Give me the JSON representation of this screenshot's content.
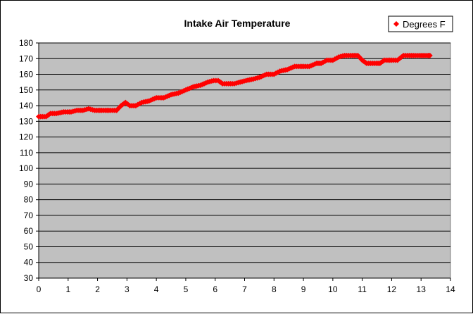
{
  "chart_data": {
    "type": "scatter",
    "title": "Intake Air Temperature",
    "xlabel": "",
    "ylabel": "",
    "xlim": [
      0,
      14
    ],
    "ylim": [
      30,
      180
    ],
    "xticks": [
      "0",
      "1",
      "2",
      "3",
      "4",
      "5",
      "6",
      "7",
      "8",
      "9",
      "10",
      "11",
      "12",
      "13",
      "14"
    ],
    "yticks": [
      "30",
      "40",
      "50",
      "60",
      "70",
      "80",
      "90",
      "100",
      "110",
      "120",
      "130",
      "140",
      "150",
      "160",
      "170",
      "180"
    ],
    "grid": "horizontal",
    "plot_background": "#C0C0C0",
    "legend_position": "top-right",
    "series": [
      {
        "name": "Degrees F",
        "color": "#FF0000",
        "marker": "diamond",
        "points": [
          [
            0.0,
            133
          ],
          [
            0.25,
            133
          ],
          [
            0.4,
            135
          ],
          [
            0.6,
            135
          ],
          [
            0.85,
            136
          ],
          [
            1.1,
            136
          ],
          [
            1.3,
            137
          ],
          [
            1.5,
            137
          ],
          [
            1.7,
            138
          ],
          [
            1.9,
            137
          ],
          [
            2.2,
            137
          ],
          [
            2.45,
            137
          ],
          [
            2.65,
            137
          ],
          [
            2.8,
            140
          ],
          [
            2.95,
            142
          ],
          [
            3.1,
            140
          ],
          [
            3.3,
            140
          ],
          [
            3.5,
            142
          ],
          [
            3.75,
            143
          ],
          [
            4.0,
            145
          ],
          [
            4.25,
            145
          ],
          [
            4.5,
            147
          ],
          [
            4.75,
            148
          ],
          [
            5.0,
            150
          ],
          [
            5.25,
            152
          ],
          [
            5.5,
            153
          ],
          [
            5.75,
            155
          ],
          [
            5.95,
            156
          ],
          [
            6.1,
            156
          ],
          [
            6.25,
            154
          ],
          [
            6.45,
            154
          ],
          [
            6.65,
            154
          ],
          [
            6.85,
            155
          ],
          [
            7.05,
            156
          ],
          [
            7.3,
            157
          ],
          [
            7.5,
            158
          ],
          [
            7.75,
            160
          ],
          [
            8.0,
            160
          ],
          [
            8.2,
            162
          ],
          [
            8.45,
            163
          ],
          [
            8.7,
            165
          ],
          [
            8.95,
            165
          ],
          [
            9.2,
            165
          ],
          [
            9.45,
            167
          ],
          [
            9.6,
            167
          ],
          [
            9.8,
            169
          ],
          [
            10.0,
            169
          ],
          [
            10.2,
            171
          ],
          [
            10.4,
            172
          ],
          [
            10.6,
            172
          ],
          [
            10.85,
            172
          ],
          [
            11.0,
            169
          ],
          [
            11.15,
            167
          ],
          [
            11.35,
            167
          ],
          [
            11.6,
            167
          ],
          [
            11.75,
            169
          ],
          [
            12.0,
            169
          ],
          [
            12.2,
            169
          ],
          [
            12.4,
            172
          ],
          [
            12.6,
            172
          ],
          [
            12.8,
            172
          ],
          [
            13.0,
            172
          ],
          [
            13.2,
            172
          ],
          [
            13.3,
            172
          ]
        ]
      }
    ]
  }
}
